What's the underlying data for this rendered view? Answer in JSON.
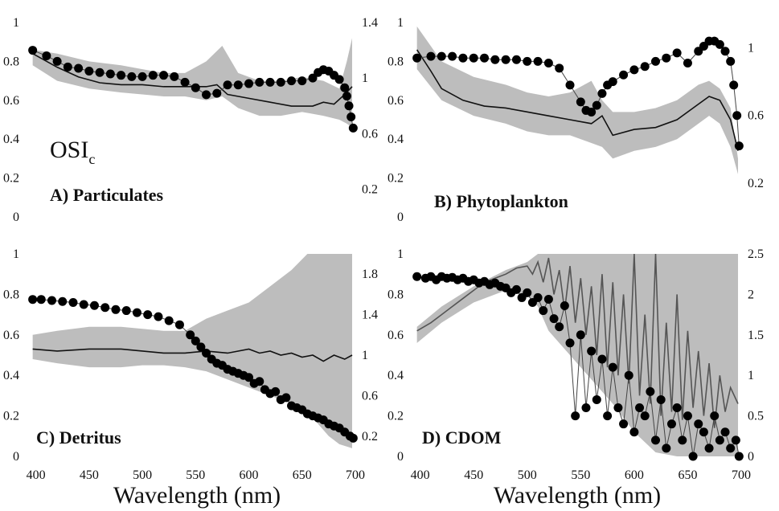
{
  "figure": {
    "xlabel": "Wavelength (nm)",
    "osi_label_main": "OSI",
    "osi_label_sub": "c"
  },
  "chart_data": [
    {
      "type": "line",
      "panel": "A",
      "title": "A) Particulates",
      "xlim": [
        395,
        700
      ],
      "ylim_left": [
        0,
        1
      ],
      "ylim_right": [
        0,
        1.4
      ],
      "x_ticks": [],
      "x_tick_labels": [],
      "y_ticks_left": [
        0,
        0.2,
        0.4,
        0.6,
        0.8,
        1
      ],
      "y_tick_labels_left": [
        "0",
        "0.2",
        "0.4",
        "0.6",
        "0.8",
        "1"
      ],
      "y_ticks_right": [
        0.2,
        0.6,
        1,
        1.4
      ],
      "y_tick_labels_right": [
        "0.2",
        "0.6",
        "1",
        "1.4"
      ],
      "band": {
        "x": [
          397,
          420,
          450,
          480,
          500,
          520,
          540,
          560,
          575,
          590,
          610,
          630,
          650,
          670,
          685,
          692,
          697
        ],
        "upper": [
          0.86,
          0.84,
          0.8,
          0.78,
          0.76,
          0.74,
          0.74,
          0.8,
          0.88,
          0.74,
          0.7,
          0.7,
          0.72,
          0.7,
          0.66,
          0.8,
          0.92
        ],
        "lower": [
          0.78,
          0.7,
          0.66,
          0.64,
          0.63,
          0.62,
          0.62,
          0.6,
          0.62,
          0.56,
          0.52,
          0.52,
          0.54,
          0.52,
          0.5,
          0.48,
          0.46
        ]
      },
      "mean_line": {
        "x": [
          397,
          420,
          440,
          460,
          480,
          500,
          520,
          540,
          560,
          570,
          580,
          600,
          620,
          640,
          660,
          670,
          680,
          690,
          697
        ],
        "y": [
          0.84,
          0.77,
          0.72,
          0.69,
          0.68,
          0.68,
          0.67,
          0.67,
          0.67,
          0.68,
          0.63,
          0.61,
          0.59,
          0.57,
          0.57,
          0.59,
          0.58,
          0.63,
          0.67
        ]
      },
      "dots": {
        "x": [
          397,
          410,
          420,
          430,
          440,
          450,
          460,
          470,
          480,
          490,
          500,
          510,
          520,
          530,
          540,
          550,
          560,
          570,
          580,
          590,
          600,
          610,
          620,
          630,
          640,
          650,
          660,
          665,
          670,
          675,
          680,
          685,
          690,
          692,
          694,
          696,
          698
        ],
        "y": [
          1.2,
          1.16,
          1.12,
          1.08,
          1.07,
          1.05,
          1.04,
          1.03,
          1.02,
          1.01,
          1.01,
          1.02,
          1.02,
          1.01,
          0.97,
          0.93,
          0.88,
          0.89,
          0.95,
          0.95,
          0.96,
          0.97,
          0.97,
          0.97,
          0.98,
          0.98,
          1.0,
          1.04,
          1.06,
          1.05,
          1.02,
          0.99,
          0.93,
          0.87,
          0.8,
          0.72,
          0.64
        ]
      }
    },
    {
      "type": "line",
      "panel": "B",
      "title": "B) Phytoplankton",
      "xlim": [
        395,
        700
      ],
      "ylim_left": [
        0,
        1
      ],
      "ylim_right": [
        0,
        1.15
      ],
      "x_ticks": [],
      "x_tick_labels": [],
      "y_ticks_left": [
        0,
        0.2,
        0.4,
        0.6,
        0.8,
        1
      ],
      "y_tick_labels_left": [
        "0",
        "0.2",
        "0.4",
        "0.6",
        "0.8",
        "1"
      ],
      "y_ticks_right": [
        0.2,
        0.6,
        1
      ],
      "y_tick_labels_right": [
        "0.2",
        "0.6",
        "1"
      ],
      "band": {
        "x": [
          397,
          420,
          450,
          480,
          500,
          520,
          540,
          560,
          570,
          580,
          600,
          620,
          640,
          660,
          670,
          680,
          690,
          697
        ],
        "upper": [
          0.98,
          0.8,
          0.72,
          0.68,
          0.64,
          0.62,
          0.64,
          0.7,
          0.6,
          0.54,
          0.54,
          0.56,
          0.6,
          0.68,
          0.7,
          0.66,
          0.56,
          0.3
        ],
        "lower": [
          0.76,
          0.6,
          0.52,
          0.48,
          0.44,
          0.42,
          0.42,
          0.38,
          0.36,
          0.3,
          0.34,
          0.36,
          0.4,
          0.48,
          0.52,
          0.48,
          0.36,
          0.22
        ]
      },
      "mean_line": {
        "x": [
          397,
          410,
          420,
          440,
          460,
          480,
          500,
          520,
          540,
          560,
          570,
          580,
          600,
          620,
          640,
          660,
          670,
          680,
          690,
          697
        ],
        "y": [
          0.86,
          0.75,
          0.66,
          0.6,
          0.57,
          0.56,
          0.54,
          0.52,
          0.5,
          0.48,
          0.52,
          0.42,
          0.45,
          0.46,
          0.5,
          0.58,
          0.62,
          0.6,
          0.5,
          0.34
        ]
      },
      "dots": {
        "x": [
          397,
          410,
          420,
          430,
          440,
          450,
          460,
          470,
          480,
          490,
          500,
          510,
          520,
          530,
          540,
          550,
          555,
          560,
          565,
          570,
          575,
          580,
          590,
          600,
          610,
          620,
          630,
          640,
          650,
          660,
          665,
          670,
          675,
          680,
          685,
          690,
          693,
          696,
          698
        ],
        "y": [
          0.94,
          0.95,
          0.95,
          0.95,
          0.94,
          0.94,
          0.94,
          0.93,
          0.93,
          0.93,
          0.92,
          0.92,
          0.91,
          0.88,
          0.78,
          0.68,
          0.63,
          0.62,
          0.66,
          0.73,
          0.78,
          0.8,
          0.84,
          0.87,
          0.89,
          0.92,
          0.94,
          0.97,
          0.91,
          0.98,
          1.01,
          1.04,
          1.04,
          1.02,
          0.98,
          0.92,
          0.78,
          0.6,
          0.42
        ]
      }
    },
    {
      "type": "line",
      "panel": "C",
      "title": "C) Detritus",
      "xlim": [
        395,
        700
      ],
      "ylim_left": [
        0,
        1
      ],
      "ylim_right": [
        0,
        2.0
      ],
      "x_ticks": [
        400,
        450,
        500,
        550,
        600,
        650,
        700
      ],
      "x_tick_labels": [
        "400",
        "450",
        "500",
        "550",
        "600",
        "650",
        "700"
      ],
      "y_ticks_left": [
        0,
        0.2,
        0.4,
        0.6,
        0.8,
        1
      ],
      "y_tick_labels_left": [
        "0",
        "0.2",
        "0.4",
        "0.6",
        "0.8",
        "1"
      ],
      "y_ticks_right": [
        0.2,
        0.6,
        1,
        1.4,
        1.8
      ],
      "y_tick_labels_right": [
        "0.2",
        "0.6",
        "1",
        "1.4",
        "1.8"
      ],
      "band": {
        "x": [
          397,
          420,
          450,
          480,
          500,
          520,
          540,
          560,
          580,
          600,
          620,
          640,
          655,
          665,
          675,
          685,
          697
        ],
        "upper": [
          0.6,
          0.62,
          0.64,
          0.64,
          0.63,
          0.62,
          0.62,
          0.68,
          0.72,
          0.76,
          0.84,
          0.92,
          1.0,
          1.0,
          1.0,
          1.0,
          1.0
        ],
        "lower": [
          0.48,
          0.46,
          0.44,
          0.44,
          0.45,
          0.45,
          0.44,
          0.42,
          0.38,
          0.34,
          0.3,
          0.26,
          0.22,
          0.16,
          0.1,
          0.06,
          0.04
        ]
      },
      "mean_line": {
        "x": [
          397,
          420,
          450,
          480,
          500,
          520,
          540,
          560,
          580,
          600,
          610,
          620,
          630,
          640,
          650,
          660,
          670,
          680,
          690,
          697
        ],
        "y": [
          0.53,
          0.52,
          0.53,
          0.53,
          0.52,
          0.51,
          0.51,
          0.52,
          0.51,
          0.53,
          0.51,
          0.52,
          0.5,
          0.51,
          0.49,
          0.5,
          0.47,
          0.5,
          0.48,
          0.5
        ]
      },
      "dots": {
        "x": [
          397,
          405,
          415,
          425,
          435,
          445,
          455,
          465,
          475,
          485,
          495,
          505,
          515,
          525,
          535,
          545,
          550,
          555,
          560,
          565,
          570,
          575,
          580,
          585,
          590,
          595,
          600,
          605,
          610,
          615,
          620,
          625,
          630,
          635,
          640,
          645,
          650,
          655,
          660,
          665,
          670,
          675,
          680,
          685,
          690,
          695,
          698
        ],
        "y": [
          1.55,
          1.55,
          1.54,
          1.53,
          1.52,
          1.5,
          1.49,
          1.47,
          1.45,
          1.44,
          1.42,
          1.4,
          1.38,
          1.34,
          1.3,
          1.2,
          1.14,
          1.08,
          1.02,
          0.96,
          0.92,
          0.9,
          0.86,
          0.84,
          0.82,
          0.8,
          0.78,
          0.72,
          0.74,
          0.66,
          0.62,
          0.64,
          0.56,
          0.58,
          0.5,
          0.48,
          0.46,
          0.42,
          0.4,
          0.38,
          0.36,
          0.32,
          0.3,
          0.28,
          0.24,
          0.2,
          0.18
        ]
      }
    },
    {
      "type": "line",
      "panel": "D",
      "title": "D) CDOM",
      "xlim": [
        395,
        700
      ],
      "ylim_left": [
        0,
        1
      ],
      "ylim_right": [
        0,
        2.5
      ],
      "x_ticks": [
        400,
        450,
        500,
        550,
        600,
        650,
        700
      ],
      "x_tick_labels": [
        "400",
        "450",
        "500",
        "550",
        "600",
        "650",
        "700"
      ],
      "y_ticks_left": [
        0,
        0.2,
        0.4,
        0.6,
        0.8,
        1
      ],
      "y_tick_labels_left": [
        "0",
        "0.2",
        "0.4",
        "0.6",
        "0.8",
        "1"
      ],
      "y_ticks_right": [
        0,
        0.5,
        1,
        1.5,
        2,
        2.5
      ],
      "y_tick_labels_right": [
        "0",
        "0.5",
        "1",
        "1.5",
        "2",
        "2.5"
      ],
      "band": {
        "x": [
          397,
          420,
          450,
          480,
          500,
          510,
          520,
          540,
          560,
          580,
          600,
          620,
          640,
          660,
          680,
          697
        ],
        "upper": [
          0.64,
          0.74,
          0.84,
          0.92,
          0.96,
          1.0,
          1.0,
          1.0,
          1.0,
          1.0,
          1.0,
          1.0,
          1.0,
          1.0,
          1.0,
          1.0
        ],
        "lower": [
          0.56,
          0.66,
          0.76,
          0.82,
          0.8,
          0.74,
          0.62,
          0.5,
          0.38,
          0.26,
          0.12,
          0.02,
          0.0,
          0.0,
          0.0,
          0.0
        ]
      },
      "mean_line": {
        "x": [
          397,
          410,
          420,
          430,
          440,
          450,
          460,
          470,
          480,
          490,
          500,
          505,
          510,
          515,
          520,
          525,
          530,
          535,
          540,
          545,
          550,
          555,
          560,
          565,
          570,
          575,
          580,
          585,
          590,
          595,
          600,
          605,
          610,
          615,
          620,
          625,
          630,
          635,
          640,
          645,
          650,
          655,
          660,
          665,
          670,
          675,
          680,
          685,
          690,
          697
        ],
        "y": [
          0.62,
          0.66,
          0.7,
          0.74,
          0.78,
          0.82,
          0.86,
          0.88,
          0.9,
          0.93,
          0.94,
          0.9,
          0.96,
          0.86,
          0.98,
          0.8,
          0.92,
          0.72,
          0.94,
          0.66,
          0.88,
          0.6,
          0.84,
          0.5,
          0.9,
          0.44,
          0.86,
          0.4,
          0.8,
          0.36,
          1.0,
          0.3,
          0.7,
          0.26,
          1.0,
          0.2,
          0.66,
          0.22,
          0.8,
          0.18,
          0.62,
          0.24,
          0.52,
          0.2,
          0.46,
          0.14,
          0.4,
          0.22,
          0.34,
          0.26
        ]
      },
      "dots": {
        "x": [
          397,
          405,
          410,
          415,
          420,
          425,
          430,
          435,
          440,
          445,
          450,
          455,
          460,
          465,
          470,
          475,
          480,
          485,
          490,
          495,
          500,
          505,
          510,
          515,
          520,
          525,
          530,
          535,
          540,
          545,
          550,
          555,
          560,
          565,
          570,
          575,
          580,
          585,
          590,
          595,
          600,
          605,
          610,
          615,
          620,
          625,
          630,
          635,
          640,
          645,
          650,
          655,
          660,
          665,
          670,
          675,
          680,
          685,
          690,
          695,
          698
        ],
        "y": [
          2.22,
          2.2,
          2.22,
          2.18,
          2.22,
          2.2,
          2.21,
          2.18,
          2.2,
          2.16,
          2.18,
          2.14,
          2.16,
          2.12,
          2.14,
          2.1,
          2.08,
          2.02,
          2.06,
          1.96,
          2.02,
          1.9,
          1.96,
          1.8,
          1.94,
          1.7,
          1.6,
          1.86,
          1.4,
          0.5,
          1.5,
          0.6,
          1.3,
          0.7,
          1.2,
          0.5,
          1.1,
          0.6,
          0.4,
          1.0,
          0.3,
          0.6,
          0.5,
          0.8,
          0.2,
          0.7,
          0.1,
          0.4,
          0.6,
          0.2,
          0.5,
          0.0,
          0.4,
          0.3,
          0.1,
          0.5,
          0.2,
          0.3,
          0.1,
          0.2,
          0.0
        ]
      }
    }
  ]
}
